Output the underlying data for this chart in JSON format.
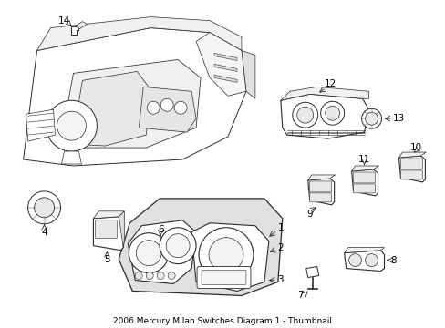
{
  "title": "2006 Mercury Milan Switches Diagram 1 - Thumbnail",
  "background_color": "#ffffff",
  "fig_width": 4.89,
  "fig_height": 3.6,
  "dpi": 100,
  "lc": "#2a2a2a",
  "lw": 0.7,
  "label_fs": 7.5
}
